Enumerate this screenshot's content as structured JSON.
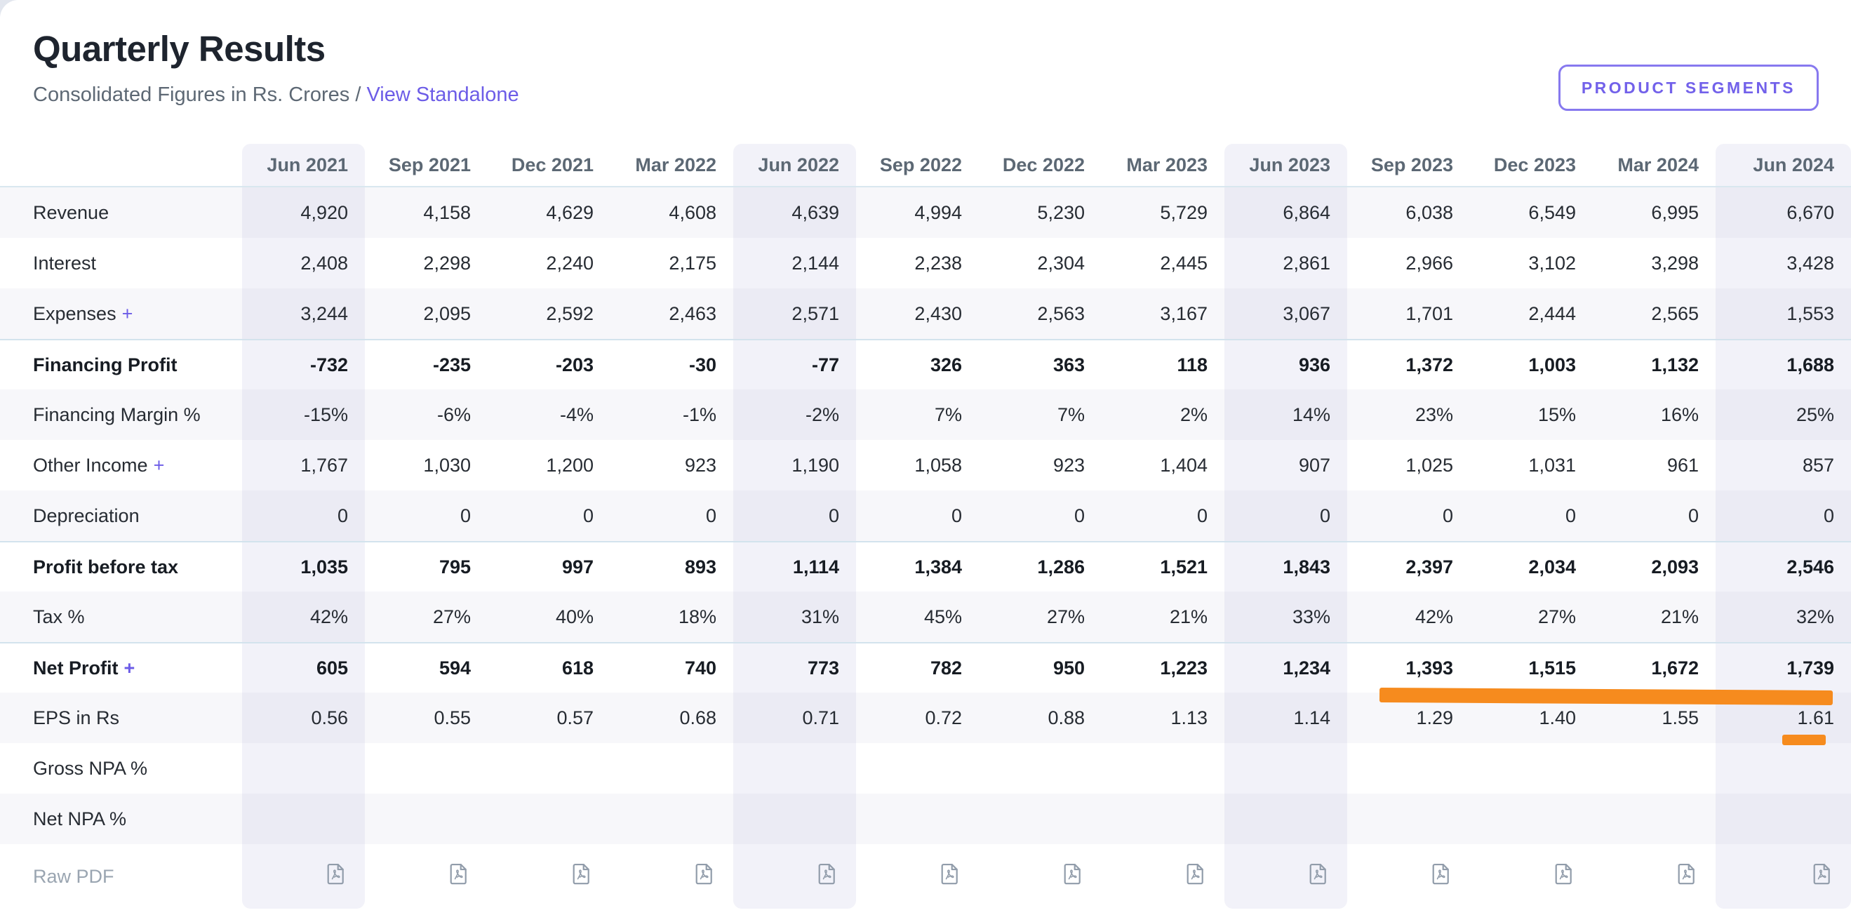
{
  "page": {
    "title": "Quarterly Results",
    "subtitle": "Consolidated Figures in Rs. Crores /",
    "view_link": "View Standalone",
    "segments_button": "PRODUCT SEGMENTS"
  },
  "colors": {
    "accent_purple": "#6c5ce7",
    "annotation_orange": "#f68b1e",
    "separator_blue": "#d3e3ed",
    "column_highlight": "#f2f2f9",
    "row_stripe": "#f7f7fa",
    "header_text": "#5c6874",
    "muted_text": "#9aa5b1"
  },
  "table": {
    "expand_symbol": "+",
    "columns": [
      "Jun 2021",
      "Sep 2021",
      "Dec 2021",
      "Mar 2022",
      "Jun 2022",
      "Sep 2022",
      "Dec 2022",
      "Mar 2023",
      "Jun 2023",
      "Sep 2023",
      "Dec 2023",
      "Mar 2024",
      "Jun 2024"
    ],
    "highlighted_column_indices": [
      0,
      4,
      8,
      12
    ],
    "rows": [
      {
        "label": "Revenue",
        "values": [
          "4,920",
          "4,158",
          "4,629",
          "4,608",
          "4,639",
          "4,994",
          "5,230",
          "5,729",
          "6,864",
          "6,038",
          "6,549",
          "6,995",
          "6,670"
        ]
      },
      {
        "label": "Interest",
        "values": [
          "2,408",
          "2,298",
          "2,240",
          "2,175",
          "2,144",
          "2,238",
          "2,304",
          "2,445",
          "2,861",
          "2,966",
          "3,102",
          "3,298",
          "3,428"
        ]
      },
      {
        "label": "Expenses",
        "expandable": true,
        "values": [
          "3,244",
          "2,095",
          "2,592",
          "2,463",
          "2,571",
          "2,430",
          "2,563",
          "3,167",
          "3,067",
          "1,701",
          "2,444",
          "2,565",
          "1,553"
        ]
      },
      {
        "label": "Financing Profit",
        "bold": true,
        "separator": true,
        "values": [
          "-732",
          "-235",
          "-203",
          "-30",
          "-77",
          "326",
          "363",
          "118",
          "936",
          "1,372",
          "1,003",
          "1,132",
          "1,688"
        ]
      },
      {
        "label": "Financing Margin %",
        "values": [
          "-15%",
          "-6%",
          "-4%",
          "-1%",
          "-2%",
          "7%",
          "7%",
          "2%",
          "14%",
          "23%",
          "15%",
          "16%",
          "25%"
        ]
      },
      {
        "label": "Other Income",
        "expandable": true,
        "values": [
          "1,767",
          "1,030",
          "1,200",
          "923",
          "1,190",
          "1,058",
          "923",
          "1,404",
          "907",
          "1,025",
          "1,031",
          "961",
          "857"
        ]
      },
      {
        "label": "Depreciation",
        "values": [
          "0",
          "0",
          "0",
          "0",
          "0",
          "0",
          "0",
          "0",
          "0",
          "0",
          "0",
          "0",
          "0"
        ]
      },
      {
        "label": "Profit before tax",
        "bold": true,
        "separator": true,
        "values": [
          "1,035",
          "795",
          "997",
          "893",
          "1,114",
          "1,384",
          "1,286",
          "1,521",
          "1,843",
          "2,397",
          "2,034",
          "2,093",
          "2,546"
        ]
      },
      {
        "label": "Tax %",
        "values": [
          "42%",
          "27%",
          "40%",
          "18%",
          "31%",
          "45%",
          "27%",
          "21%",
          "33%",
          "42%",
          "27%",
          "21%",
          "32%"
        ]
      },
      {
        "label": "Net Profit",
        "expandable": true,
        "bold": true,
        "separator": true,
        "values": [
          "605",
          "594",
          "618",
          "740",
          "773",
          "782",
          "950",
          "1,223",
          "1,234",
          "1,393",
          "1,515",
          "1,672",
          "1,739"
        ]
      },
      {
        "label": "EPS in Rs",
        "values": [
          "0.56",
          "0.55",
          "0.57",
          "0.68",
          "0.71",
          "0.72",
          "0.88",
          "1.13",
          "1.14",
          "1.29",
          "1.40",
          "1.55",
          "1.61"
        ]
      },
      {
        "label": "Gross NPA %",
        "values": [
          "",
          "",
          "",
          "",
          "",
          "",
          "",
          "",
          "",
          "",
          "",
          "",
          ""
        ]
      },
      {
        "label": "Net NPA %",
        "values": [
          "",
          "",
          "",
          "",
          "",
          "",
          "",
          "",
          "",
          "",
          "",
          "",
          ""
        ]
      },
      {
        "label": "Raw PDF",
        "type": "pdf"
      }
    ]
  },
  "annotations": {
    "net_profit_underline": "orange marker under Net Profit values Sep 2023 to Jun 2024",
    "eps_underline": "orange marker under EPS value 1.61 (Jun 2024)"
  }
}
